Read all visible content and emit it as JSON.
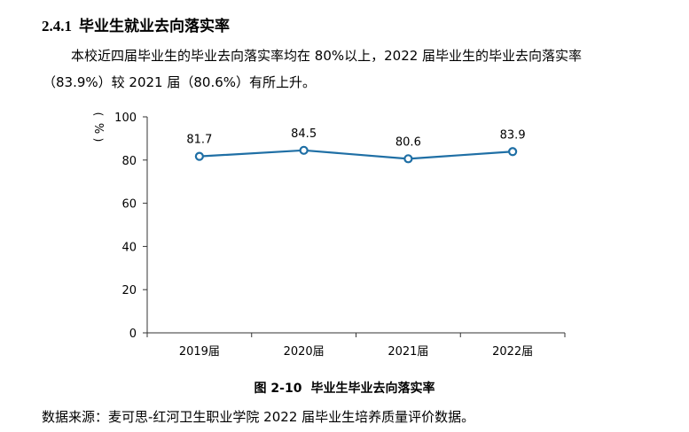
{
  "section": {
    "number": "2.4.1",
    "title": "毕业生就业去向落实率"
  },
  "paragraph": {
    "line1": "本校近四届毕业生的毕业去向落实率均在 80%以上，2022 届毕业生的毕业去向落实率",
    "line2": "（83.9%）较 2021 届（80.6%）有所上升。"
  },
  "chart_data": {
    "type": "line",
    "categories": [
      "2019届",
      "2020届",
      "2021届",
      "2022届"
    ],
    "series": [
      {
        "values": [
          81.7,
          84.5,
          80.6,
          83.9
        ]
      }
    ],
    "data_labels": [
      "81.7",
      "84.5",
      "80.6",
      "83.9"
    ],
    "ylabel": "%",
    "ylim": [
      0,
      100
    ],
    "yticks": [
      0,
      20,
      40,
      60,
      80,
      100
    ],
    "grid": false,
    "line_color": "#1f6fa5",
    "marker_fill": "#ffffff"
  },
  "caption": {
    "figure_number": "图 2-10",
    "figure_title": "毕业生毕业去向落实率"
  },
  "source_note": "数据来源：麦可思-红河卫生职业学院 2022 届毕业生培养质量评价数据。"
}
